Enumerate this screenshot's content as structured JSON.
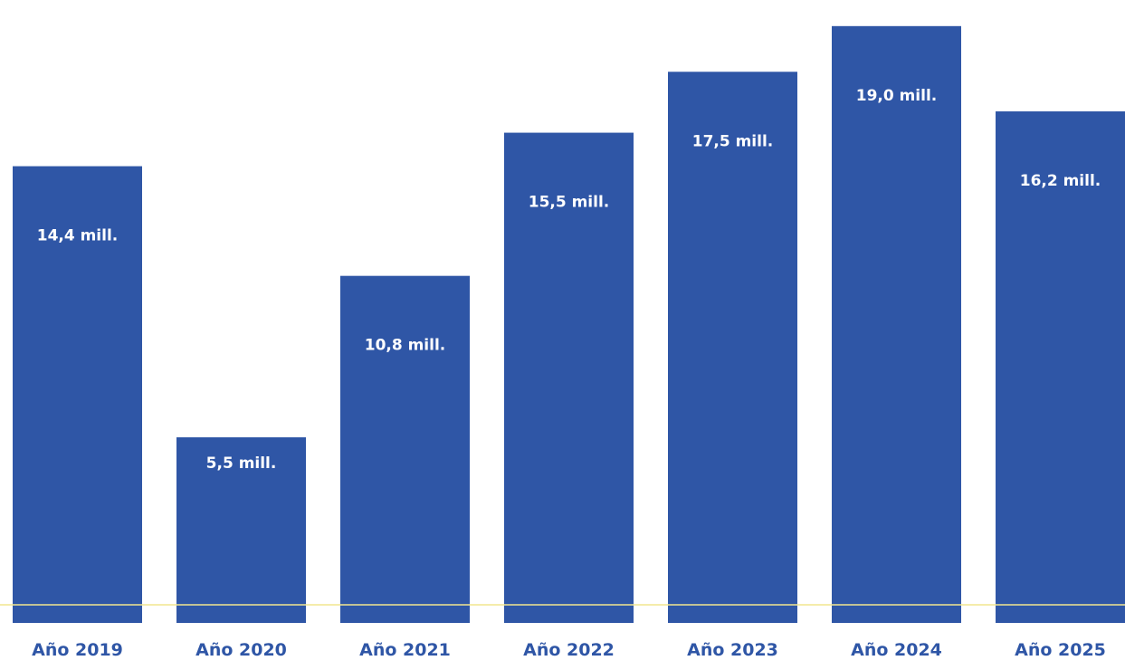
{
  "chart_data": {
    "type": "bar",
    "categories": [
      "Año 2019",
      "Año 2020",
      "Año 2021",
      "Año 2022",
      "Año 2023",
      "Año 2024",
      "Año 2025"
    ],
    "values": [
      14.4,
      5.5,
      10.8,
      15.5,
      17.5,
      19.0,
      16.2
    ],
    "value_labels": [
      "14,4 mill.",
      "5,5 mill.",
      "10,8 mill.",
      "15,5 mill.",
      "17,5 mill.",
      "19,0 mill.",
      "16,2 mill."
    ],
    "title": "",
    "xlabel": "",
    "ylabel": "",
    "ylim": [
      0,
      19.5
    ],
    "grid": false,
    "legend": "none",
    "colors": {
      "bar": "#2f56a6",
      "bar_label": "#ffffff",
      "category_label": "#2f56a6",
      "baseline": "#f2e58f",
      "background": "#ffffff"
    }
  }
}
